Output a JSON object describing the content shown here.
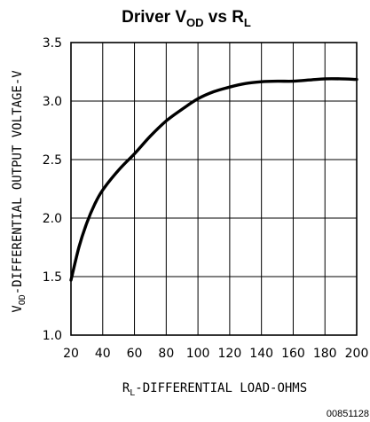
{
  "chart_data": {
    "type": "line",
    "title": {
      "main": "Driver V",
      "main_sub": "OD",
      "mid": " vs R",
      "mid_sub": "L"
    },
    "xlabel": {
      "pre": "R",
      "sub": "L",
      "post": "-DIFFERENTIAL LOAD-OHMS"
    },
    "ylabel": {
      "pre": "V",
      "sub": "OD",
      "post": "-DIFFERENTIAL OUTPUT VOLTAGE-V"
    },
    "xlim": [
      20,
      200
    ],
    "ylim": [
      1.0,
      3.5
    ],
    "xticks": [
      20,
      40,
      60,
      80,
      100,
      120,
      140,
      160,
      180,
      200
    ],
    "yticks": [
      "1.0",
      "1.5",
      "2.0",
      "2.5",
      "3.0",
      "3.5"
    ],
    "grid": true,
    "series": [
      {
        "x": [
          20,
          25,
          30,
          35,
          40,
          50,
          60,
          70,
          80,
          90,
          100,
          110,
          120,
          130,
          140,
          150,
          160,
          170,
          180,
          190,
          200
        ],
        "values": [
          1.47,
          1.75,
          1.96,
          2.12,
          2.24,
          2.41,
          2.55,
          2.7,
          2.83,
          2.93,
          3.02,
          3.08,
          3.12,
          3.15,
          3.165,
          3.17,
          3.17,
          3.18,
          3.19,
          3.19,
          3.185
        ]
      }
    ]
  },
  "footer_code": "00851128"
}
